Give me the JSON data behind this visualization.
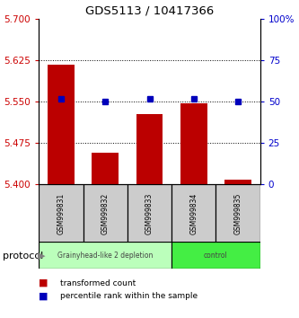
{
  "title": "GDS5113 / 10417366",
  "samples": [
    "GSM999831",
    "GSM999832",
    "GSM999833",
    "GSM999834",
    "GSM999835"
  ],
  "bar_values": [
    5.618,
    5.458,
    5.527,
    5.548,
    5.408
  ],
  "bar_bottom": 5.4,
  "percentile_values": [
    52,
    50,
    52,
    52,
    50
  ],
  "bar_color": "#bb0000",
  "percentile_color": "#0000bb",
  "ylim_left": [
    5.4,
    5.7
  ],
  "ylim_right": [
    0,
    100
  ],
  "yticks_left": [
    5.4,
    5.475,
    5.55,
    5.625,
    5.7
  ],
  "yticks_right": [
    0,
    25,
    50,
    75,
    100
  ],
  "groups": [
    {
      "label": "Grainyhead-like 2 depletion",
      "indices": [
        0,
        1,
        2
      ],
      "color": "#bbffbb"
    },
    {
      "label": "control",
      "indices": [
        3,
        4
      ],
      "color": "#44ee44"
    }
  ],
  "group_label_prefix": "protocol",
  "legend_red_label": "transformed count",
  "legend_blue_label": "percentile rank within the sample",
  "tick_label_color_left": "#cc0000",
  "tick_label_color_right": "#0000cc",
  "bar_width": 0.6,
  "sample_box_color": "#cccccc"
}
